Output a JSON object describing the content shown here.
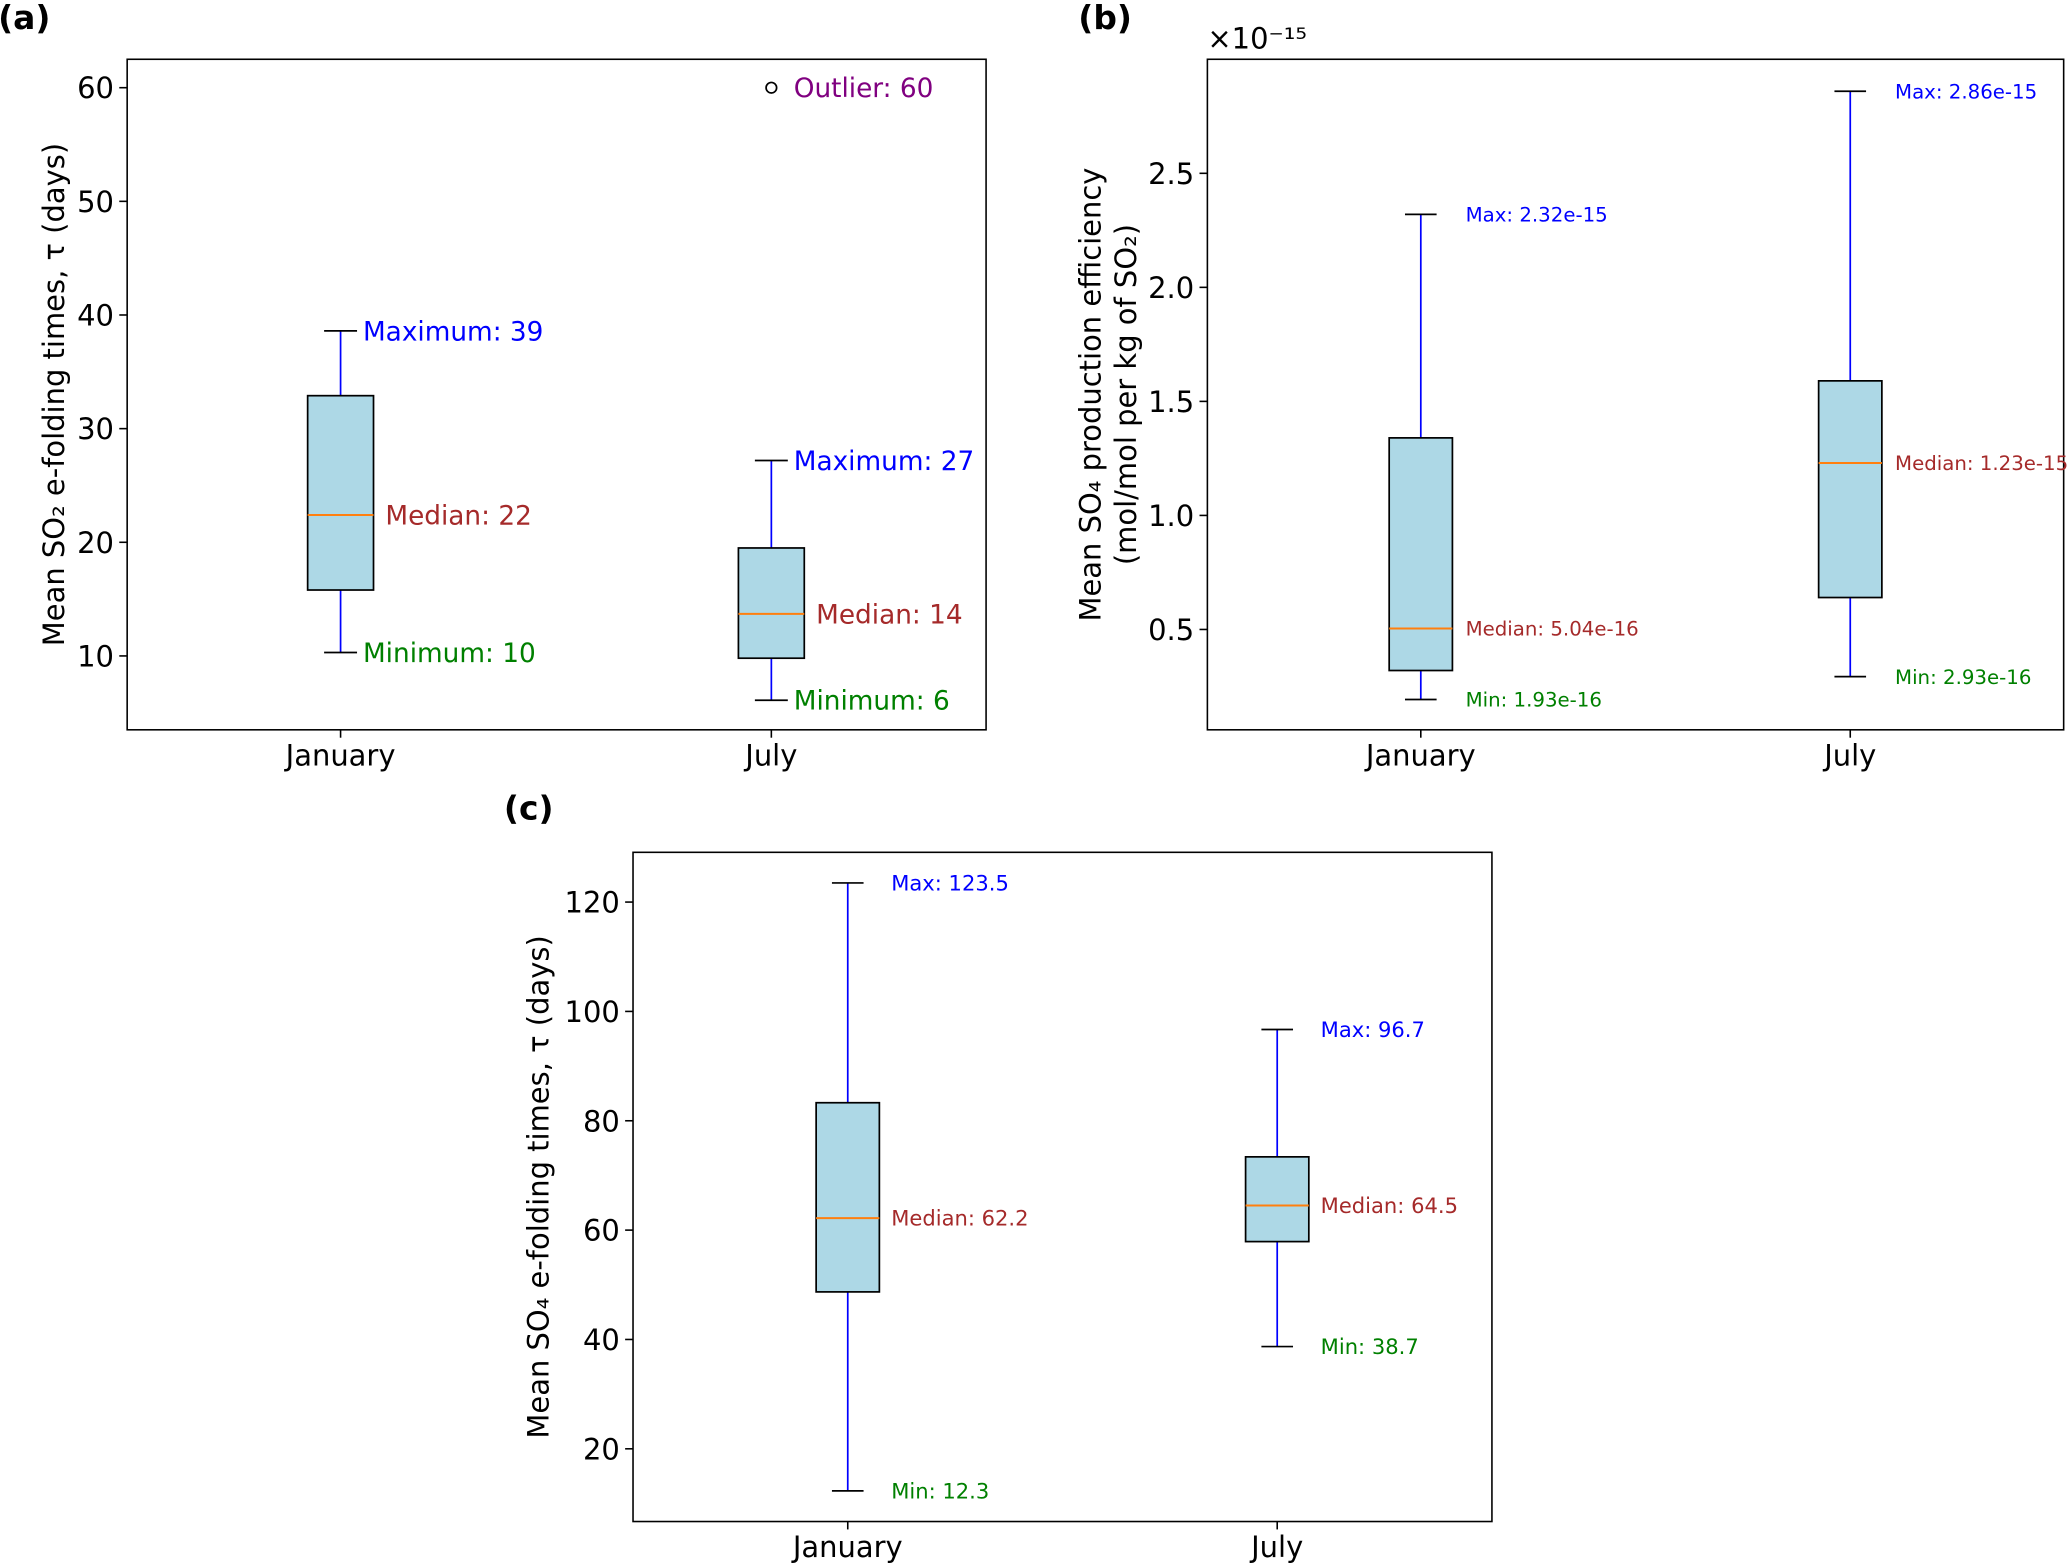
{
  "chart_data": [
    {
      "panel_label": "(a)",
      "type": "box",
      "ylabel": "Mean SO₂ e-folding times, τ (days)",
      "categories": [
        "January",
        "July"
      ],
      "ylim": [
        3.5,
        62.5
      ],
      "yticks": [
        10,
        20,
        30,
        40,
        50,
        60
      ],
      "grid": false,
      "boxes": [
        {
          "category": "January",
          "min": 10.3,
          "q1": 15.8,
          "median": 22.4,
          "q3": 32.9,
          "max": 38.6,
          "labels": {
            "max": "Maximum: 39",
            "median": "Median: 22",
            "min": "Minimum: 10"
          }
        },
        {
          "category": "July",
          "min": 6.1,
          "q1": 9.8,
          "median": 13.7,
          "q3": 19.5,
          "max": 27.2,
          "labels": {
            "max": "Maximum: 27",
            "median": "Median: 14",
            "min": "Minimum: 6"
          }
        }
      ],
      "outliers": [
        {
          "category": "July",
          "value": 60,
          "label": "Outlier: 60"
        }
      ]
    },
    {
      "panel_label": "(b)",
      "type": "box",
      "ylabel": "Mean SO₄ production efficiency",
      "ylabel2": "(mol/mol per kg of SO₂)",
      "offset_text": "×10⁻¹⁵",
      "categories": [
        "January",
        "July"
      ],
      "ylim": [
        0.06,
        3.0
      ],
      "yticks": [
        0.5,
        1.0,
        1.5,
        2.0,
        2.5
      ],
      "ytick_labels": [
        "0.5",
        "1.0",
        "1.5",
        "2.0",
        "2.5"
      ],
      "grid": false,
      "boxes": [
        {
          "category": "January",
          "min": 0.193,
          "q1": 0.32,
          "median": 0.504,
          "q3": 1.34,
          "max": 2.32,
          "labels": {
            "max": "Max: 2.32e-15",
            "median": "Median: 5.04e-16",
            "min": "Min: 1.93e-16"
          }
        },
        {
          "category": "July",
          "min": 0.293,
          "q1": 0.64,
          "median": 1.23,
          "q3": 1.59,
          "max": 2.86,
          "labels": {
            "max": "Max: 2.86e-15",
            "median": "Median: 1.23e-15",
            "min": "Min: 2.93e-16"
          }
        }
      ],
      "outliers": []
    },
    {
      "panel_label": "(c)",
      "type": "box",
      "ylabel": "Mean SO₄ e-folding times, τ (days)",
      "categories": [
        "January",
        "July"
      ],
      "ylim": [
        6.7,
        129.1
      ],
      "yticks": [
        20,
        40,
        60,
        80,
        100,
        120
      ],
      "grid": false,
      "boxes": [
        {
          "category": "January",
          "min": 12.3,
          "q1": 48.7,
          "median": 62.2,
          "q3": 83.3,
          "max": 123.5,
          "labels": {
            "max": "Max: 123.5",
            "median": "Median: 62.2",
            "min": "Min: 12.3"
          }
        },
        {
          "category": "July",
          "min": 38.7,
          "q1": 57.9,
          "median": 64.5,
          "q3": 73.4,
          "max": 96.7,
          "labels": {
            "max": "Max: 96.7",
            "median": "Median: 64.5",
            "min": "Min: 38.7"
          }
        }
      ],
      "outliers": []
    }
  ],
  "colors": {
    "box_fill": "#add8e6",
    "whisker": "#0000ff",
    "median_line": "#ff7f0e",
    "max_label": "#0000ff",
    "median_label": "#a52a2a",
    "min_label": "#008000",
    "outlier_label": "#800080"
  }
}
